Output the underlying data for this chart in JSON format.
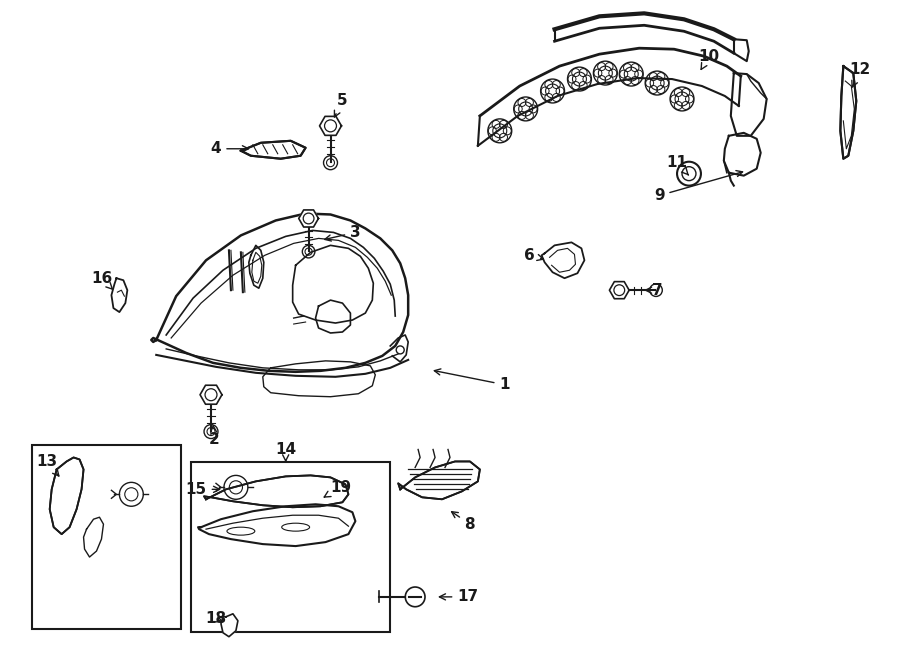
{
  "background_color": "#ffffff",
  "line_color": "#1a1a1a",
  "fig_width": 9.0,
  "fig_height": 6.61,
  "dpi": 100,
  "bumper_outer": {
    "x": [
      0.155,
      0.175,
      0.21,
      0.255,
      0.3,
      0.345,
      0.375,
      0.4,
      0.415,
      0.43,
      0.445,
      0.455,
      0.46,
      0.46,
      0.455,
      0.445,
      0.435,
      0.42,
      0.4,
      0.375,
      0.345,
      0.31,
      0.275,
      0.235,
      0.195,
      0.165,
      0.148,
      0.145,
      0.148,
      0.155
    ],
    "y": [
      0.605,
      0.655,
      0.695,
      0.725,
      0.74,
      0.745,
      0.74,
      0.725,
      0.705,
      0.68,
      0.655,
      0.635,
      0.615,
      0.585,
      0.565,
      0.545,
      0.53,
      0.52,
      0.515,
      0.515,
      0.518,
      0.522,
      0.528,
      0.545,
      0.562,
      0.578,
      0.59,
      0.598,
      0.603,
      0.605
    ]
  },
  "label_fontsize": 11
}
